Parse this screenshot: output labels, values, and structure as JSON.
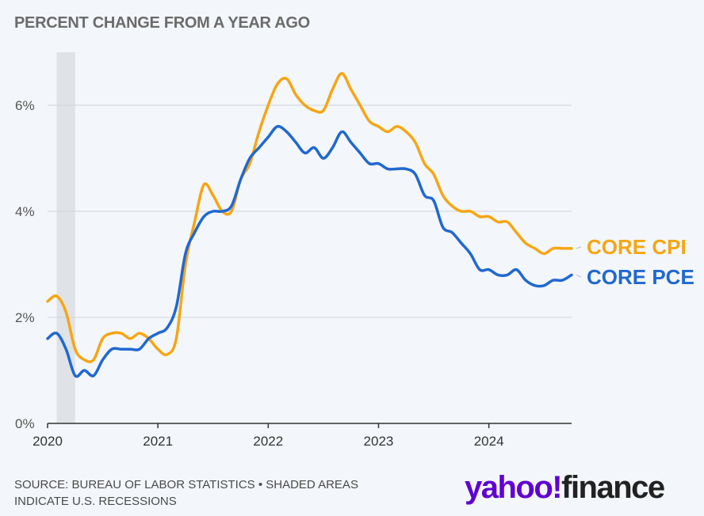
{
  "header": {
    "title": "PERCENT CHANGE FROM A YEAR AGO"
  },
  "footer": {
    "source_line1": "SOURCE: BUREAU OF LABOR STATISTICS • SHADED AREAS",
    "source_line2": "INDICATE U.S. RECESSIONS"
  },
  "logo": {
    "brand": "yahoo!",
    "product": "finance"
  },
  "chart_data": {
    "type": "line",
    "title": "PERCENT CHANGE FROM A YEAR AGO",
    "xlabel": "",
    "ylabel": "",
    "xlim": [
      2020.0,
      2024.75
    ],
    "ylim": [
      0,
      7
    ],
    "yticks": [
      0,
      2,
      4,
      6
    ],
    "ytick_labels": [
      "0%",
      "2%",
      "4%",
      "6%"
    ],
    "xticks": [
      2020,
      2021,
      2022,
      2023,
      2024
    ],
    "xtick_labels": [
      "2020",
      "2021",
      "2022",
      "2023",
      "2024"
    ],
    "grid": true,
    "recession": [
      2020.083,
      2020.25
    ],
    "series": [
      {
        "name": "CORE CPI",
        "color": "#f5a614",
        "points": [
          [
            2020.0,
            2.3
          ],
          [
            2020.083,
            2.4
          ],
          [
            2020.167,
            2.1
          ],
          [
            2020.25,
            1.4
          ],
          [
            2020.333,
            1.2
          ],
          [
            2020.417,
            1.2
          ],
          [
            2020.5,
            1.6
          ],
          [
            2020.583,
            1.7
          ],
          [
            2020.667,
            1.7
          ],
          [
            2020.75,
            1.6
          ],
          [
            2020.833,
            1.7
          ],
          [
            2020.917,
            1.6
          ],
          [
            2021.0,
            1.4
          ],
          [
            2021.083,
            1.3
          ],
          [
            2021.167,
            1.6
          ],
          [
            2021.25,
            3.0
          ],
          [
            2021.333,
            3.8
          ],
          [
            2021.417,
            4.5
          ],
          [
            2021.5,
            4.3
          ],
          [
            2021.583,
            4.0
          ],
          [
            2021.667,
            4.0
          ],
          [
            2021.75,
            4.6
          ],
          [
            2021.833,
            4.9
          ],
          [
            2021.917,
            5.5
          ],
          [
            2022.0,
            6.0
          ],
          [
            2022.083,
            6.4
          ],
          [
            2022.167,
            6.5
          ],
          [
            2022.25,
            6.2
          ],
          [
            2022.333,
            6.0
          ],
          [
            2022.417,
            5.9
          ],
          [
            2022.5,
            5.9
          ],
          [
            2022.583,
            6.3
          ],
          [
            2022.667,
            6.6
          ],
          [
            2022.75,
            6.3
          ],
          [
            2022.833,
            6.0
          ],
          [
            2022.917,
            5.7
          ],
          [
            2023.0,
            5.6
          ],
          [
            2023.083,
            5.5
          ],
          [
            2023.167,
            5.6
          ],
          [
            2023.25,
            5.5
          ],
          [
            2023.333,
            5.3
          ],
          [
            2023.417,
            4.9
          ],
          [
            2023.5,
            4.7
          ],
          [
            2023.583,
            4.3
          ],
          [
            2023.667,
            4.1
          ],
          [
            2023.75,
            4.0
          ],
          [
            2023.833,
            4.0
          ],
          [
            2023.917,
            3.9
          ],
          [
            2024.0,
            3.9
          ],
          [
            2024.083,
            3.8
          ],
          [
            2024.167,
            3.8
          ],
          [
            2024.25,
            3.6
          ],
          [
            2024.333,
            3.4
          ],
          [
            2024.417,
            3.3
          ],
          [
            2024.5,
            3.2
          ],
          [
            2024.583,
            3.3
          ],
          [
            2024.667,
            3.3
          ],
          [
            2024.75,
            3.3
          ]
        ]
      },
      {
        "name": "CORE PCE",
        "color": "#2068d0",
        "points": [
          [
            2020.0,
            1.6
          ],
          [
            2020.083,
            1.7
          ],
          [
            2020.167,
            1.4
          ],
          [
            2020.25,
            0.9
          ],
          [
            2020.333,
            1.0
          ],
          [
            2020.417,
            0.9
          ],
          [
            2020.5,
            1.2
          ],
          [
            2020.583,
            1.4
          ],
          [
            2020.667,
            1.4
          ],
          [
            2020.75,
            1.4
          ],
          [
            2020.833,
            1.4
          ],
          [
            2020.917,
            1.6
          ],
          [
            2021.0,
            1.7
          ],
          [
            2021.083,
            1.8
          ],
          [
            2021.167,
            2.2
          ],
          [
            2021.25,
            3.2
          ],
          [
            2021.333,
            3.6
          ],
          [
            2021.417,
            3.9
          ],
          [
            2021.5,
            4.0
          ],
          [
            2021.583,
            4.0
          ],
          [
            2021.667,
            4.1
          ],
          [
            2021.75,
            4.6
          ],
          [
            2021.833,
            5.0
          ],
          [
            2021.917,
            5.2
          ],
          [
            2022.0,
            5.4
          ],
          [
            2022.083,
            5.6
          ],
          [
            2022.167,
            5.5
          ],
          [
            2022.25,
            5.3
          ],
          [
            2022.333,
            5.1
          ],
          [
            2022.417,
            5.2
          ],
          [
            2022.5,
            5.0
          ],
          [
            2022.583,
            5.2
          ],
          [
            2022.667,
            5.5
          ],
          [
            2022.75,
            5.3
          ],
          [
            2022.833,
            5.1
          ],
          [
            2022.917,
            4.9
          ],
          [
            2023.0,
            4.9
          ],
          [
            2023.083,
            4.8
          ],
          [
            2023.167,
            4.8
          ],
          [
            2023.25,
            4.8
          ],
          [
            2023.333,
            4.7
          ],
          [
            2023.417,
            4.3
          ],
          [
            2023.5,
            4.2
          ],
          [
            2023.583,
            3.7
          ],
          [
            2023.667,
            3.6
          ],
          [
            2023.75,
            3.4
          ],
          [
            2023.833,
            3.2
          ],
          [
            2023.917,
            2.9
          ],
          [
            2024.0,
            2.9
          ],
          [
            2024.083,
            2.8
          ],
          [
            2024.167,
            2.8
          ],
          [
            2024.25,
            2.9
          ],
          [
            2024.333,
            2.7
          ],
          [
            2024.417,
            2.6
          ],
          [
            2024.5,
            2.6
          ],
          [
            2024.583,
            2.7
          ],
          [
            2024.667,
            2.7
          ],
          [
            2024.75,
            2.8
          ]
        ]
      }
    ]
  }
}
